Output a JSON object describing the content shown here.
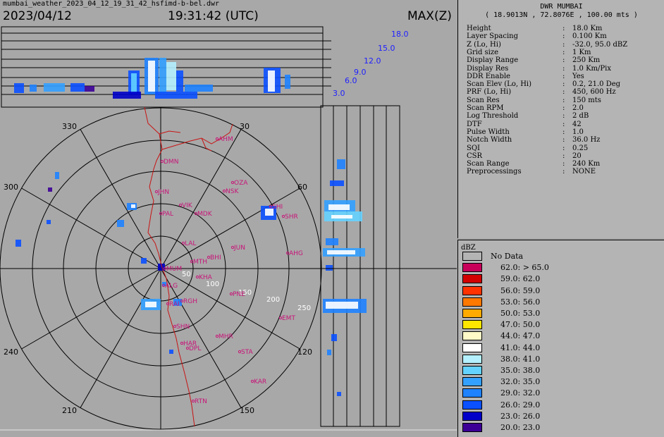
{
  "header": {
    "filename": "mumbai_weather_2023_04_12_19_31_42_hsfimd-b-bel.dwr",
    "date": "2023/04/12",
    "time": "19:31:42 (UTC)",
    "product": "MAX(Z)"
  },
  "height_labels": [
    "18.0",
    "15.0",
    "12.0",
    "9.0",
    "6.0",
    "3.0"
  ],
  "azimuth_labels": [
    "330",
    "30",
    "300",
    "60",
    "240",
    "120",
    "210",
    "150"
  ],
  "range_labels": [
    "50",
    "100",
    "150",
    "200",
    "250"
  ],
  "stations": [
    "AHM",
    "DMN",
    "OZA",
    "NSK",
    "JHN",
    "SHI",
    "VIK",
    "MDK",
    "SHR",
    "PAL",
    "LAL",
    "JUN",
    "AHG",
    "MUM",
    "MTH",
    "BHI",
    "KHA",
    "PNE",
    "ALG",
    "RGH",
    "RAI",
    "EMT",
    "SHN",
    "MHR",
    "HAR",
    "DPL",
    "STA",
    "KAR",
    "RTN"
  ],
  "info": {
    "title": "DWR MUMBAI",
    "coords": "( 18.9013N , 72.8076E , 100.00 mts )",
    "rows": [
      {
        "key": "Height",
        "value": "18.0 Km"
      },
      {
        "key": "Layer Spacing",
        "value": "0.100 Km"
      },
      {
        "key": "Z (Lo, Hi)",
        "value": "-32.0, 95.0 dBZ"
      },
      {
        "key": "Grid size",
        "value": "1 Km"
      },
      {
        "key": "Display Range",
        "value": "250 Km"
      },
      {
        "key": "Display Res",
        "value": "1.0 Km/Pix"
      },
      {
        "key": "DDR Enable",
        "value": "Yes"
      },
      {
        "key": "Scan Elev (Lo, Hi)",
        "value": "0.2, 21.0 Deg"
      },
      {
        "key": "PRF (Lo, Hi)",
        "value": "450, 600 Hz"
      },
      {
        "key": "Scan Res",
        "value": "150 mts"
      },
      {
        "key": "Scan RPM",
        "value": "2.0"
      },
      {
        "key": "Log Threshold",
        "value": "2 dB"
      },
      {
        "key": "DTF",
        "value": "42"
      },
      {
        "key": "Pulse Width",
        "value": "1.0"
      },
      {
        "key": "Notch Width",
        "value": "36.0 Hz"
      },
      {
        "key": "SQI",
        "value": "0.25"
      },
      {
        "key": "CSR",
        "value": "20"
      },
      {
        "key": "Scan Range",
        "value": "240 Km"
      },
      {
        "key": "Preprocessings",
        "value": "NONE"
      }
    ]
  },
  "legend": {
    "unit": "dBZ",
    "items": [
      {
        "label": "No Data",
        "color": "#b4b4b4"
      },
      {
        "label": "62.0: > 65.0",
        "color": "#c8005a"
      },
      {
        "label": "59.0: 62.0",
        "color": "#d20000"
      },
      {
        "label": "56.0: 59.0",
        "color": "#ff3200"
      },
      {
        "label": "53.0: 56.0",
        "color": "#ff7800"
      },
      {
        "label": "50.0: 53.0",
        "color": "#ffaa00"
      },
      {
        "label": "47.0: 50.0",
        "color": "#ffe600"
      },
      {
        "label": "44.0: 47.0",
        "color": "#fffac8"
      },
      {
        "label": "41.0: 44.0",
        "color": "#ffffff"
      },
      {
        "label": "38.0: 41.0",
        "color": "#b4f0ff"
      },
      {
        "label": "35.0: 38.0",
        "color": "#64d2ff"
      },
      {
        "label": "32.0: 35.0",
        "color": "#32a0ff"
      },
      {
        "label": "29.0: 32.0",
        "color": "#1e82ff"
      },
      {
        "label": "26.0: 29.0",
        "color": "#0a50ff"
      },
      {
        "label": "23.0: 26.0",
        "color": "#0000c8"
      },
      {
        "label": "20.0: 23.0",
        "color": "#3c0096"
      }
    ]
  }
}
